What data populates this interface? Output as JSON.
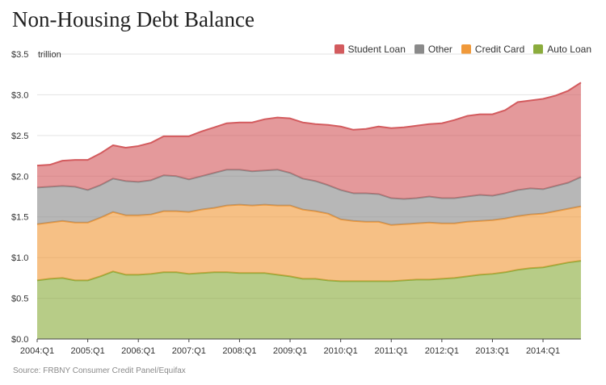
{
  "chart_data": {
    "type": "area",
    "stacked": true,
    "title": "Non-Housing Debt Balance",
    "ylabel": "trillion",
    "xlabel": "",
    "ylim": [
      0,
      3.5
    ],
    "xlim": [
      2004.0,
      2014.75
    ],
    "yticks": [
      {
        "value": 0.0,
        "label": "$0.0"
      },
      {
        "value": 0.5,
        "label": "$0.5"
      },
      {
        "value": 1.0,
        "label": "$1.0"
      },
      {
        "value": 1.5,
        "label": "$1.5"
      },
      {
        "value": 2.0,
        "label": "$2.0"
      },
      {
        "value": 2.5,
        "label": "$2.5"
      },
      {
        "value": 3.0,
        "label": "$3.0"
      },
      {
        "value": 3.5,
        "label": "$3.5"
      }
    ],
    "xticks": [
      {
        "value": 2004,
        "label": "2004:Q1"
      },
      {
        "value": 2005,
        "label": "2005:Q1"
      },
      {
        "value": 2006,
        "label": "2006:Q1"
      },
      {
        "value": 2007,
        "label": "2007:Q1"
      },
      {
        "value": 2008,
        "label": "2008:Q1"
      },
      {
        "value": 2009,
        "label": "2009:Q1"
      },
      {
        "value": 2010,
        "label": "2010:Q1"
      },
      {
        "value": 2011,
        "label": "2011:Q1"
      },
      {
        "value": 2012,
        "label": "2012:Q1"
      },
      {
        "value": 2013,
        "label": "2013:Q1"
      },
      {
        "value": 2014,
        "label": "2014:Q1"
      }
    ],
    "grid": "horizontal",
    "legend_position": "top-right",
    "x": [
      "2004:Q1",
      "2004:Q2",
      "2004:Q3",
      "2004:Q4",
      "2005:Q1",
      "2005:Q2",
      "2005:Q3",
      "2005:Q4",
      "2006:Q1",
      "2006:Q2",
      "2006:Q3",
      "2006:Q4",
      "2007:Q1",
      "2007:Q2",
      "2007:Q3",
      "2007:Q4",
      "2008:Q1",
      "2008:Q2",
      "2008:Q3",
      "2008:Q4",
      "2009:Q1",
      "2009:Q2",
      "2009:Q3",
      "2009:Q4",
      "2010:Q1",
      "2010:Q2",
      "2010:Q3",
      "2010:Q4",
      "2011:Q1",
      "2011:Q2",
      "2011:Q3",
      "2011:Q4",
      "2012:Q1",
      "2012:Q2",
      "2012:Q3",
      "2012:Q4",
      "2013:Q1",
      "2013:Q2",
      "2013:Q3",
      "2013:Q4",
      "2014:Q1",
      "2014:Q2",
      "2014:Q3",
      "2014:Q4"
    ],
    "series": [
      {
        "name": "Auto Loan",
        "color": "#8bac3d",
        "values": [
          0.72,
          0.74,
          0.75,
          0.72,
          0.72,
          0.77,
          0.83,
          0.79,
          0.79,
          0.8,
          0.82,
          0.82,
          0.8,
          0.81,
          0.82,
          0.82,
          0.81,
          0.81,
          0.81,
          0.79,
          0.77,
          0.74,
          0.74,
          0.72,
          0.71,
          0.71,
          0.71,
          0.71,
          0.71,
          0.72,
          0.73,
          0.73,
          0.74,
          0.75,
          0.77,
          0.79,
          0.8,
          0.82,
          0.85,
          0.87,
          0.88,
          0.91,
          0.94,
          0.96
        ]
      },
      {
        "name": "Credit Card",
        "color": "#f0993a",
        "values": [
          0.69,
          0.69,
          0.7,
          0.71,
          0.71,
          0.72,
          0.73,
          0.73,
          0.73,
          0.73,
          0.75,
          0.75,
          0.76,
          0.78,
          0.79,
          0.82,
          0.84,
          0.83,
          0.84,
          0.85,
          0.87,
          0.85,
          0.83,
          0.82,
          0.76,
          0.74,
          0.73,
          0.73,
          0.69,
          0.69,
          0.69,
          0.7,
          0.68,
          0.67,
          0.67,
          0.66,
          0.66,
          0.66,
          0.66,
          0.66,
          0.66,
          0.66,
          0.66,
          0.67
        ]
      },
      {
        "name": "Other",
        "color": "#8a8a8a",
        "values": [
          0.45,
          0.44,
          0.43,
          0.44,
          0.4,
          0.4,
          0.41,
          0.42,
          0.41,
          0.42,
          0.44,
          0.43,
          0.4,
          0.41,
          0.43,
          0.44,
          0.43,
          0.42,
          0.42,
          0.44,
          0.4,
          0.38,
          0.37,
          0.35,
          0.36,
          0.34,
          0.35,
          0.34,
          0.33,
          0.31,
          0.31,
          0.32,
          0.31,
          0.31,
          0.31,
          0.32,
          0.3,
          0.31,
          0.32,
          0.32,
          0.3,
          0.31,
          0.32,
          0.36
        ]
      },
      {
        "name": "Student Loan",
        "color": "#d35b5e",
        "values": [
          0.27,
          0.27,
          0.31,
          0.33,
          0.37,
          0.39,
          0.41,
          0.41,
          0.44,
          0.46,
          0.48,
          0.49,
          0.53,
          0.55,
          0.56,
          0.57,
          0.58,
          0.6,
          0.63,
          0.64,
          0.67,
          0.69,
          0.7,
          0.74,
          0.78,
          0.78,
          0.79,
          0.83,
          0.86,
          0.88,
          0.89,
          0.89,
          0.92,
          0.96,
          0.99,
          0.99,
          1.0,
          1.02,
          1.08,
          1.08,
          1.11,
          1.11,
          1.13,
          1.16
        ]
      }
    ],
    "value_format": "$",
    "source": "Source: FRBNY Consumer Credit Panel/Equifax"
  }
}
